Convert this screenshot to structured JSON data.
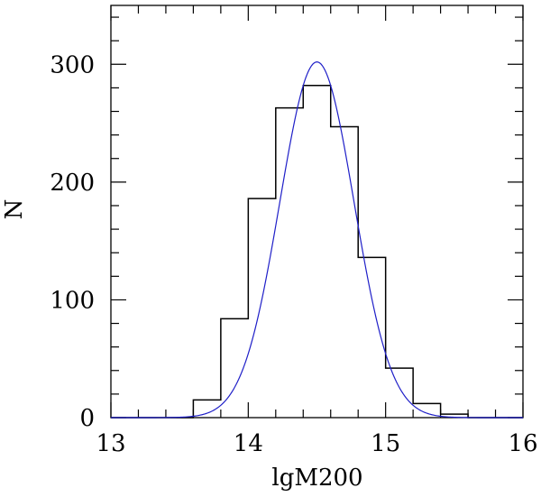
{
  "chart_data": {
    "type": "histogram",
    "xlabel": "lgM200",
    "ylabel": "N",
    "xlim": [
      13,
      16
    ],
    "ylim": [
      0,
      350
    ],
    "xticks": [
      13,
      14,
      15,
      16
    ],
    "yticks": [
      0,
      100,
      200,
      300
    ],
    "x_minor_step": 0.2,
    "y_minor_step": 20,
    "bin_edges": [
      13.6,
      13.8,
      14.0,
      14.2,
      14.4,
      14.6,
      14.8,
      15.0,
      15.2,
      15.4,
      15.6
    ],
    "values": [
      15,
      84,
      186,
      263,
      282,
      247,
      136,
      42,
      12,
      3
    ],
    "fit": {
      "type": "gaussian",
      "color": "#1f1fc8",
      "amplitude": 302,
      "mean": 14.5,
      "sigma": 0.27
    },
    "histogram_color": "#000000"
  }
}
